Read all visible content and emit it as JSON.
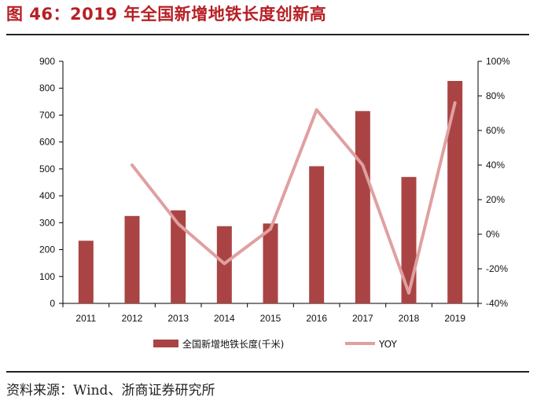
{
  "title": "图 46：2019 年全国新增地铁长度创新高",
  "source": "资料来源：Wind、浙商证券研究所",
  "colors": {
    "bar": "#aa4444",
    "line": "#e0a0a0",
    "title": "#b72025"
  },
  "chart_data": {
    "type": "bar+line",
    "categories": [
      "2011",
      "2012",
      "2013",
      "2014",
      "2015",
      "2016",
      "2017",
      "2018",
      "2019"
    ],
    "series": [
      {
        "name": "全国新增地铁长度(千米)",
        "type": "bar",
        "axis": "left",
        "values": [
          233,
          325,
          346,
          287,
          297,
          510,
          715,
          470,
          827
        ]
      },
      {
        "name": "YOY",
        "type": "line",
        "axis": "right",
        "unit": "%",
        "values": [
          null,
          40,
          6,
          -17,
          3,
          72,
          40,
          -34,
          76
        ]
      }
    ],
    "left_axis": {
      "min": 0,
      "max": 900,
      "ticks": [
        "0",
        "100",
        "200",
        "300",
        "400",
        "500",
        "600",
        "700",
        "800",
        "900"
      ]
    },
    "right_axis": {
      "min": -40,
      "max": 100,
      "ticks": [
        "-40%",
        "-20%",
        "0%",
        "20%",
        "40%",
        "60%",
        "80%",
        "100%"
      ]
    },
    "legend": {
      "position": "bottom"
    },
    "grid": false
  }
}
